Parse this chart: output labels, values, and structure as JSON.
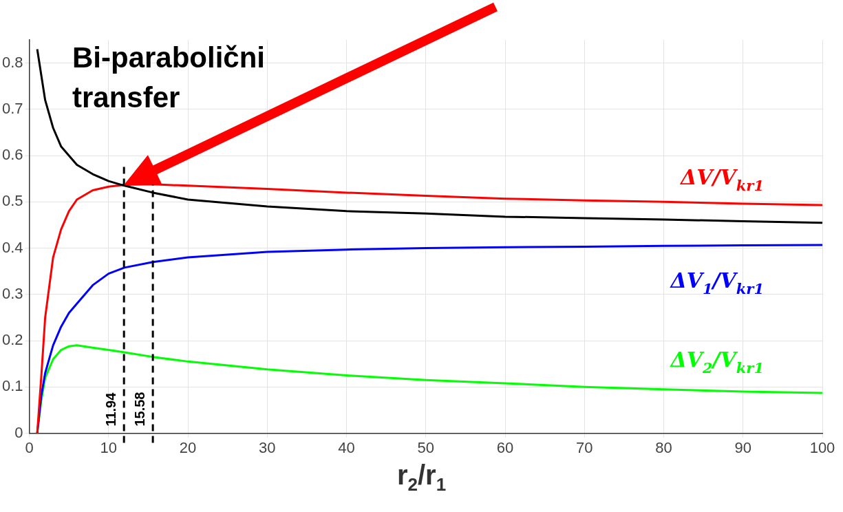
{
  "chart_data": {
    "type": "line",
    "xlabel": "r$_{2}$/r$_{1}$",
    "xlim": [
      0,
      100
    ],
    "xticks": [
      0,
      10,
      20,
      30,
      40,
      50,
      60,
      70,
      80,
      90,
      100
    ],
    "ylim": [
      0,
      0.85
    ],
    "yticks": [
      0,
      0.1,
      0.2,
      0.3,
      0.4,
      0.5,
      0.6,
      0.7,
      0.8
    ],
    "grid": true,
    "legend": false,
    "marker": "none",
    "line_style": "solid",
    "x": [
      1,
      1.5,
      2,
      3,
      4,
      5,
      6,
      8,
      10,
      12,
      15.58,
      20,
      30,
      40,
      50,
      60,
      70,
      80,
      90,
      100
    ],
    "series": [
      {
        "color": "#000000",
        "x": [
          1,
          2,
          3,
          4,
          6,
          8,
          10,
          12,
          15.58,
          20,
          30,
          40,
          50,
          60,
          70,
          80,
          90,
          100
        ],
        "values": [
          0.83,
          0.72,
          0.66,
          0.62,
          0.58,
          0.56,
          0.545,
          0.535,
          0.52,
          0.505,
          0.49,
          0.48,
          0.475,
          0.468,
          0.465,
          0.462,
          0.458,
          0.455
        ]
      },
      {
        "name": "ΔV/V$_{kr1}$",
        "color": "#ff0000",
        "values": [
          0,
          0.12,
          0.25,
          0.38,
          0.44,
          0.48,
          0.505,
          0.525,
          0.533,
          0.537,
          0.538,
          0.535,
          0.528,
          0.52,
          0.513,
          0.507,
          0.503,
          0.5,
          0.496,
          0.493
        ]
      },
      {
        "name": "ΔV$_{1}$/V$_{kr1}$",
        "color": "#0000ff",
        "values": [
          0,
          0.08,
          0.13,
          0.19,
          0.23,
          0.26,
          0.28,
          0.32,
          0.345,
          0.358,
          0.37,
          0.38,
          0.392,
          0.397,
          0.4,
          0.402,
          0.403,
          0.405,
          0.406,
          0.407
        ]
      },
      {
        "name": "ΔV$_{2}$/V$_{kr1}$",
        "color": "#00ff00",
        "values": [
          0,
          0.07,
          0.12,
          0.16,
          0.18,
          0.188,
          0.19,
          0.185,
          0.18,
          0.175,
          0.165,
          0.155,
          0.138,
          0.125,
          0.115,
          0.108,
          0.1,
          0.095,
          0.09,
          0.087
        ]
      }
    ],
    "ref_lines": [
      {
        "axis": "x",
        "value": 11.94,
        "label": "11.94",
        "line_style": "dashed",
        "color": "#000000"
      },
      {
        "axis": "x",
        "value": 15.58,
        "label": "15.58",
        "line_style": "dashed",
        "color": "#000000"
      }
    ],
    "annotations": [
      {
        "text": "Bi-parabolični transfer",
        "x": 11.94,
        "y": 0.537
      }
    ]
  }
}
